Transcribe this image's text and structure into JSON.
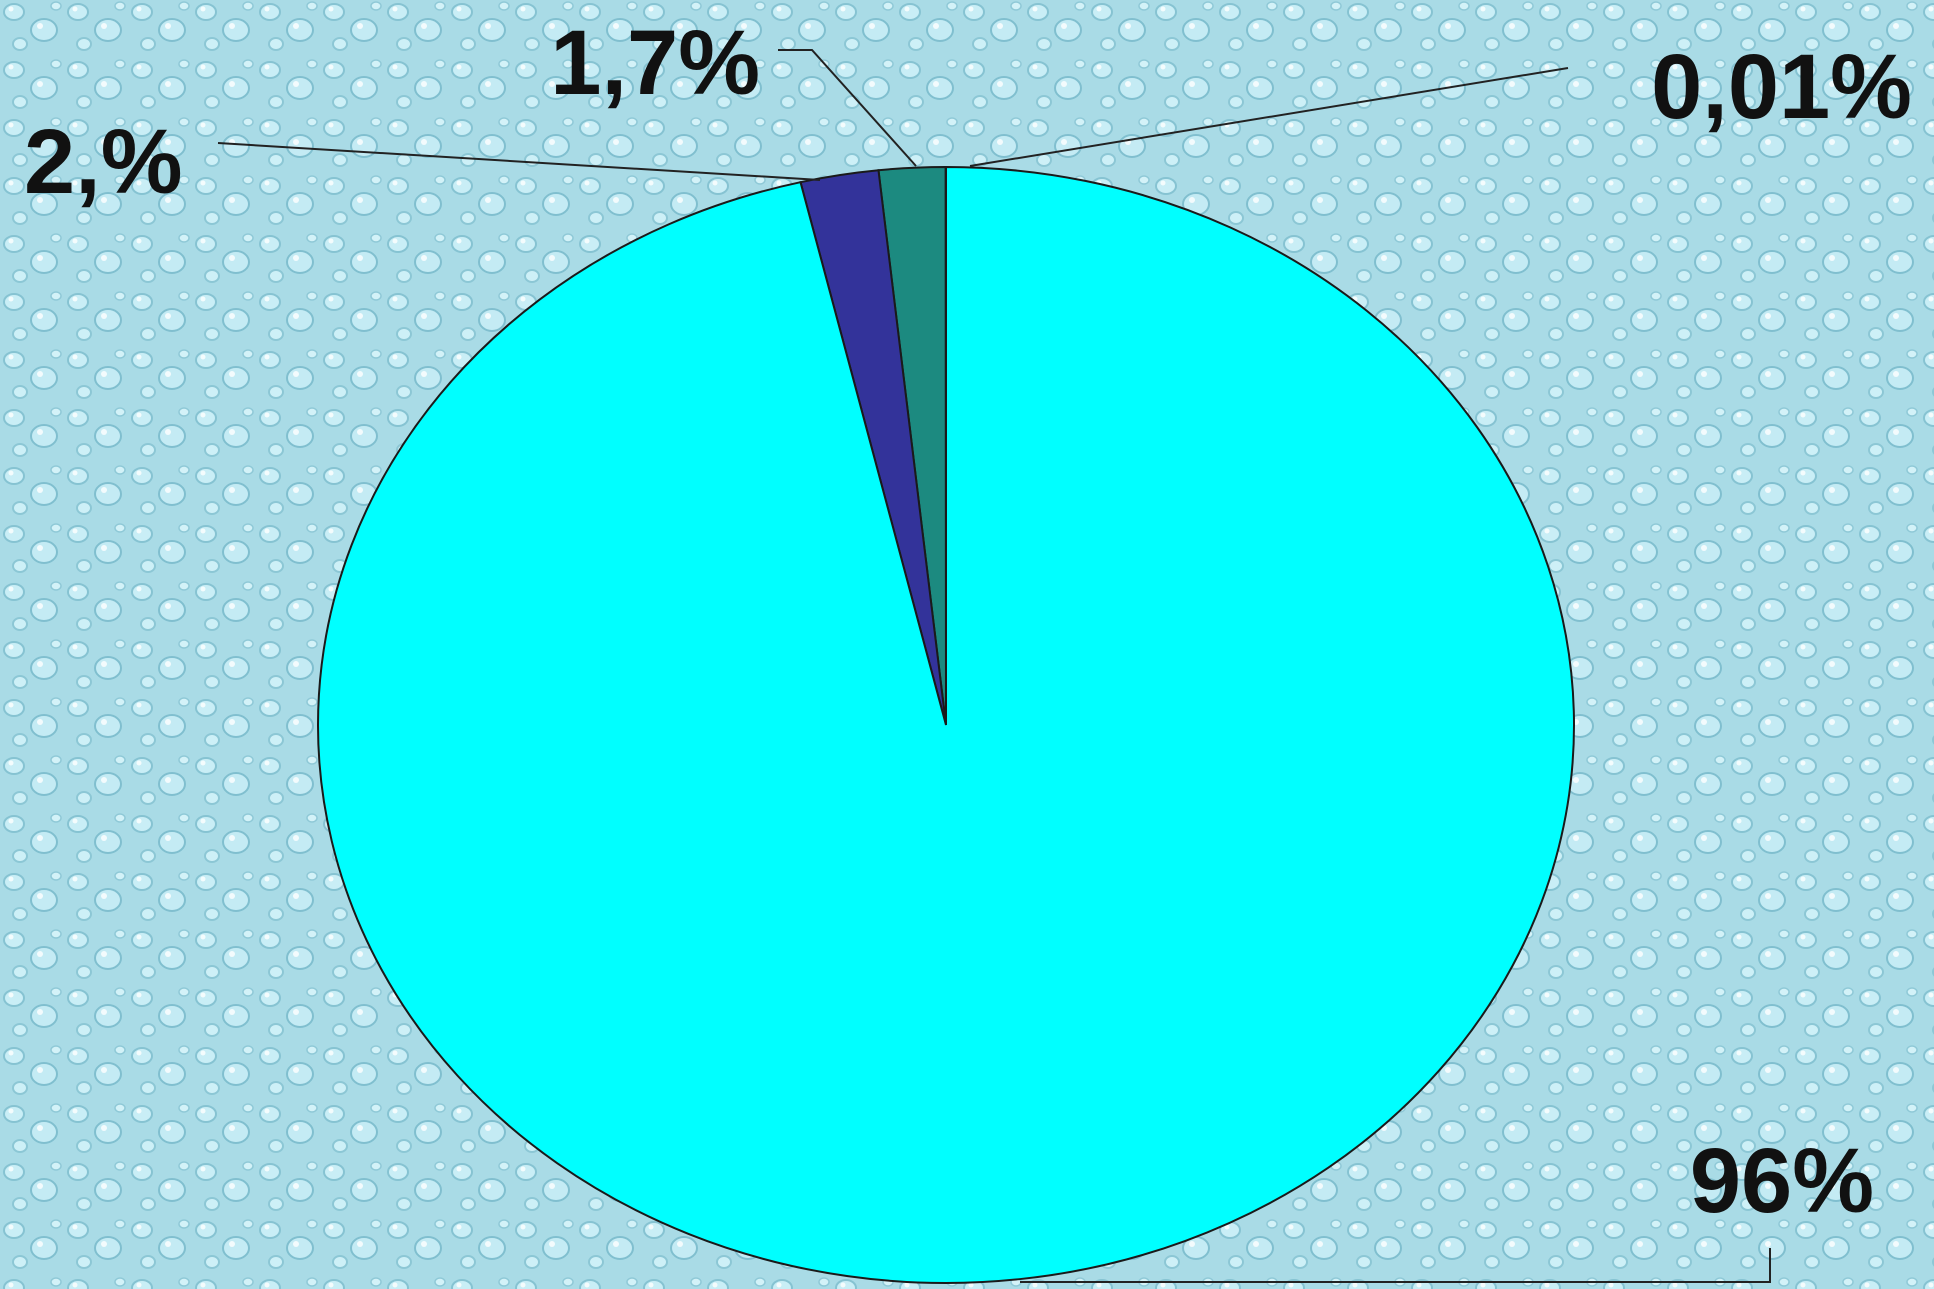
{
  "chart_data": {
    "type": "pie",
    "title": "",
    "start_angle_deg": 0,
    "direction": "counterclockwise",
    "slices": [
      {
        "label": "0,01%",
        "value": 0.01,
        "color": "#9fe0f0"
      },
      {
        "label": "1,7%",
        "value": 1.7,
        "color": "#1c8a80"
      },
      {
        "label": "2,%",
        "value": 2.0,
        "color": "#33339a"
      },
      {
        "label": "96%",
        "value": 96,
        "color": "#00ffff"
      }
    ]
  },
  "colors": {
    "background": "#a9dbe6",
    "outline": "#1a1a1a"
  }
}
